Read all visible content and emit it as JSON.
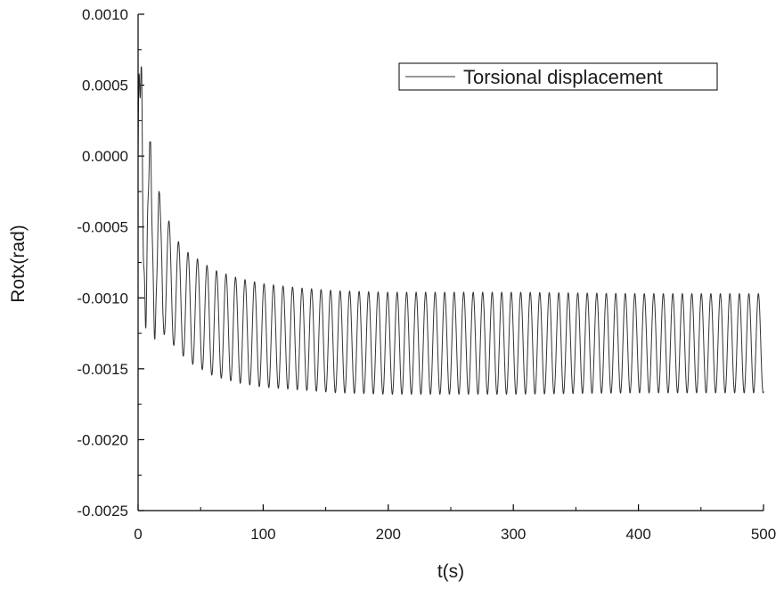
{
  "chart_data": {
    "type": "line",
    "title": "",
    "xlabel": "t(s)",
    "ylabel": "Rotx(rad)",
    "xlim": [
      0,
      500
    ],
    "ylim": [
      -0.0025,
      0.001
    ],
    "grid": false,
    "legend_position": "top-right",
    "x_ticks": [
      0,
      100,
      200,
      300,
      400,
      500
    ],
    "x_tick_labels": [
      "0",
      "100",
      "200",
      "300",
      "400",
      "500"
    ],
    "y_ticks": [
      0.001,
      0.0005,
      0.0,
      -0.0005,
      -0.001,
      -0.0015,
      -0.002,
      -0.0025
    ],
    "y_tick_labels": [
      "0.0010",
      "0.0005",
      "0.0000",
      "-0.0005",
      "-0.0010",
      "-0.0015",
      "-0.0020",
      "-0.0025"
    ],
    "series": [
      {
        "name": "Torsional displacement",
        "color": "#333333",
        "oscillation_period_s": 7.6,
        "envelope": [
          {
            "t": 0,
            "max": 0.00068,
            "min": -0.0007
          },
          {
            "t": 3,
            "max": 0.00062,
            "min": -0.00095
          },
          {
            "t": 6,
            "max": 0.0001,
            "min": -0.00115
          },
          {
            "t": 10,
            "max": 0.0001,
            "min": -0.0011
          },
          {
            "t": 15,
            "max": -0.0002,
            "min": -0.0013
          },
          {
            "t": 20,
            "max": -0.00035,
            "min": -0.00125
          },
          {
            "t": 30,
            "max": -0.00058,
            "min": -0.00135
          },
          {
            "t": 40,
            "max": -0.00068,
            "min": -0.00145
          },
          {
            "t": 60,
            "max": -0.0008,
            "min": -0.00155
          },
          {
            "t": 80,
            "max": -0.00086,
            "min": -0.0016
          },
          {
            "t": 100,
            "max": -0.0009,
            "min": -0.00163
          },
          {
            "t": 130,
            "max": -0.00093,
            "min": -0.00165
          },
          {
            "t": 160,
            "max": -0.00095,
            "min": -0.00167
          },
          {
            "t": 200,
            "max": -0.00096,
            "min": -0.00168
          },
          {
            "t": 300,
            "max": -0.00096,
            "min": -0.00168
          },
          {
            "t": 400,
            "max": -0.00097,
            "min": -0.00167
          },
          {
            "t": 500,
            "max": -0.00097,
            "min": -0.00167
          }
        ]
      }
    ]
  }
}
